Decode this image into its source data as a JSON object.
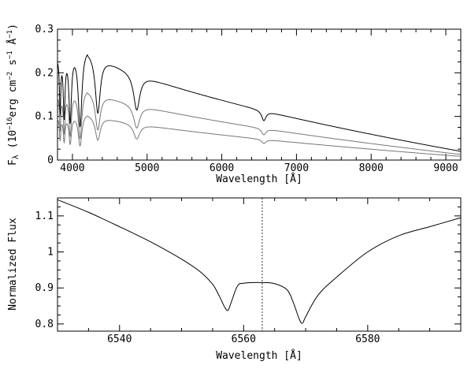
{
  "chart_data": [
    {
      "type": "line",
      "xlabel": "Wavelength [Å]",
      "ylabel_parts": {
        "prefix": "F",
        "sub": "λ",
        "open": " (10",
        "exp1": "−16",
        "erg": "erg cm",
        "exp2": "−2",
        "s": " s",
        "exp3": "−1",
        "A": " Å",
        "exp4": "−1",
        "close": ")"
      },
      "xlim": [
        3800,
        9200
      ],
      "ylim": [
        0,
        0.3
      ],
      "xticks": [
        4000,
        5000,
        6000,
        7000,
        8000,
        9000
      ],
      "yticks": [
        0,
        0.1,
        0.2,
        0.3
      ],
      "ytick_labels": [
        "0",
        "0.1",
        "0.2",
        "0.3"
      ],
      "lines_shown": [
        {
          "color": "#000000",
          "scale": 1.0,
          "y_at_9200": 0.02
        },
        {
          "color": "#777777",
          "scale": 0.64,
          "y_at_9200": 0.012
        },
        {
          "color": "#777777",
          "scale": 0.42,
          "y_at_9200": 0.008
        }
      ],
      "absorption_lines": [
        3835,
        3889,
        3970,
        4102,
        4340,
        4861,
        6563
      ],
      "continuum_peak": {
        "x": 4200,
        "y": 0.27
      }
    },
    {
      "type": "line",
      "xlabel": "Wavelength [Å]",
      "ylabel": "Normalized Flux",
      "xlim": [
        6530,
        6595
      ],
      "ylim": [
        0.78,
        1.15
      ],
      "xticks": [
        6540,
        6560,
        6580
      ],
      "yticks": [
        0.8,
        0.9,
        1.0,
        1.1
      ],
      "ytick_labels": [
        "0.8",
        "0.9",
        "1",
        "1.1"
      ],
      "vertical_marker_x": 6563,
      "series_points": [
        [
          6530,
          1.145
        ],
        [
          6535,
          1.11
        ],
        [
          6540,
          1.07
        ],
        [
          6545,
          1.028
        ],
        [
          6550,
          0.98
        ],
        [
          6553,
          0.945
        ],
        [
          6555,
          0.91
        ],
        [
          6556,
          0.88
        ],
        [
          6557,
          0.845
        ],
        [
          6557.5,
          0.838
        ],
        [
          6558,
          0.86
        ],
        [
          6559,
          0.905
        ],
        [
          6560,
          0.913
        ],
        [
          6563,
          0.915
        ],
        [
          6565,
          0.912
        ],
        [
          6567,
          0.895
        ],
        [
          6568,
          0.86
        ],
        [
          6569,
          0.812
        ],
        [
          6569.5,
          0.802
        ],
        [
          6570,
          0.82
        ],
        [
          6572,
          0.88
        ],
        [
          6575,
          0.93
        ],
        [
          6580,
          1.0
        ],
        [
          6585,
          1.045
        ],
        [
          6590,
          1.07
        ],
        [
          6595,
          1.095
        ]
      ]
    }
  ]
}
